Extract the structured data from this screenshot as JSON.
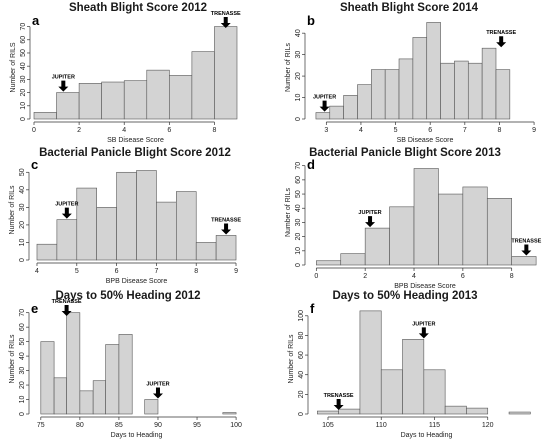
{
  "chart_data": [
    {
      "type": "bar",
      "panel": "a",
      "title": "Sheath Blight Score 2012",
      "xlabel": "SB Disease Score",
      "ylabel": "Number of RILS",
      "xlim": [
        0,
        9
      ],
      "ylim": [
        0,
        78
      ],
      "xticks": [
        0,
        2,
        4,
        6,
        8
      ],
      "yticks": [
        0,
        10,
        20,
        30,
        40,
        50,
        60,
        70
      ],
      "bins": [
        [
          0,
          1
        ],
        [
          1,
          2
        ],
        [
          2,
          3
        ],
        [
          3,
          4
        ],
        [
          4,
          5
        ],
        [
          5,
          6
        ],
        [
          6,
          7
        ],
        [
          7,
          8
        ],
        [
          8,
          9
        ]
      ],
      "values": [
        5,
        20,
        27,
        28,
        29,
        37,
        33,
        51,
        70
      ],
      "annotations": [
        {
          "label": "JUPITER",
          "x": 1.3,
          "y": 20
        },
        {
          "label": "TRENASSE",
          "x": 8.5,
          "y": 70
        }
      ]
    },
    {
      "type": "bar",
      "panel": "b",
      "title": "Sheath Blight Score 2014",
      "xlabel": "SB Disease Score",
      "ylabel": "Number of RILs",
      "xlim": [
        2.5,
        9.2
      ],
      "ylim": [
        0,
        48
      ],
      "xticks": [
        3,
        4,
        5,
        6,
        7,
        8,
        9
      ],
      "yticks": [
        0,
        10,
        20,
        30,
        40
      ],
      "bins": [
        [
          2.7,
          3.1
        ],
        [
          3.1,
          3.5
        ],
        [
          3.5,
          3.9
        ],
        [
          3.9,
          4.3
        ],
        [
          4.3,
          4.7
        ],
        [
          4.7,
          5.1
        ],
        [
          5.1,
          5.5
        ],
        [
          5.5,
          5.9
        ],
        [
          5.9,
          6.3
        ],
        [
          6.3,
          6.7
        ],
        [
          6.7,
          7.1
        ],
        [
          7.1,
          7.5
        ],
        [
          7.5,
          7.9
        ],
        [
          7.9,
          8.3
        ],
        [
          8.3,
          8.7
        ]
      ],
      "values": [
        3,
        6,
        11,
        16,
        23,
        23,
        28,
        38,
        45,
        26,
        27,
        26,
        33,
        23,
        0
      ],
      "annotations": [
        {
          "label": "JUPITER",
          "x": 2.95,
          "y": 3
        },
        {
          "label": "TRENASSE",
          "x": 8.05,
          "y": 33
        }
      ]
    },
    {
      "type": "bar",
      "panel": "c",
      "title": "Bacterial Panicle Blight Score 2012",
      "xlabel": "BPB Disease Score",
      "ylabel": "Number of RILs",
      "xlim": [
        3.9,
        9.1
      ],
      "ylim": [
        0,
        57
      ],
      "xticks": [
        4,
        5,
        6,
        7,
        8,
        9
      ],
      "yticks": [
        0,
        10,
        20,
        30,
        40,
        50
      ],
      "bins": [
        [
          4,
          4.5
        ],
        [
          4.5,
          5
        ],
        [
          5,
          5.5
        ],
        [
          5.5,
          6
        ],
        [
          6,
          6.5
        ],
        [
          6.5,
          7
        ],
        [
          7,
          7.5
        ],
        [
          7.5,
          8
        ],
        [
          8,
          8.5
        ],
        [
          8.5,
          9
        ]
      ],
      "values": [
        9,
        23,
        41,
        30,
        50,
        51,
        33,
        39,
        10,
        14
      ],
      "annotations": [
        {
          "label": "JUPITER",
          "x": 4.75,
          "y": 23
        },
        {
          "label": "TRENASSE",
          "x": 8.75,
          "y": 14
        }
      ]
    },
    {
      "type": "bar",
      "panel": "d",
      "title": "Bacterial Panicle Blight Score 2013",
      "xlabel": "BPB Disease Score",
      "ylabel": "Number of RILs",
      "xlim": [
        -0.3,
        9.2
      ],
      "ylim": [
        0,
        74
      ],
      "xticks": [
        0,
        2,
        4,
        6,
        8
      ],
      "yticks": [
        0,
        10,
        20,
        30,
        40,
        50,
        60,
        70
      ],
      "bins": [
        [
          0,
          1
        ],
        [
          1,
          2
        ],
        [
          2,
          3
        ],
        [
          3,
          4
        ],
        [
          4,
          5
        ],
        [
          5,
          6
        ],
        [
          6,
          7
        ],
        [
          7,
          8
        ],
        [
          8,
          9
        ]
      ],
      "values": [
        3,
        8,
        26,
        41,
        68,
        50,
        55,
        47,
        6
      ],
      "annotations": [
        {
          "label": "JUPITER",
          "x": 2.2,
          "y": 26
        },
        {
          "label": "TRENASSE",
          "x": 8.6,
          "y": 6
        }
      ]
    },
    {
      "type": "bar",
      "panel": "e",
      "title": "Days to 50% Heading 2012",
      "xlabel": "Days to Heading",
      "ylabel": "Number of RILs",
      "xlim": [
        74,
        100.5
      ],
      "ylim": [
        0,
        76
      ],
      "xticks": [
        75,
        80,
        85,
        90,
        95,
        100
      ],
      "yticks": [
        0,
        10,
        20,
        30,
        40,
        50,
        60,
        70
      ],
      "bins": [
        [
          75,
          76.7
        ],
        [
          76.7,
          78.3
        ],
        [
          78.3,
          80
        ],
        [
          80,
          81.7
        ],
        [
          81.7,
          83.3
        ],
        [
          83.3,
          85
        ],
        [
          85,
          86.7
        ],
        [
          86.7,
          88.3
        ],
        [
          88.3,
          90
        ],
        [
          90,
          91.7
        ],
        [
          91.7,
          93.3
        ],
        [
          93.3,
          95
        ],
        [
          95,
          96.7
        ],
        [
          96.7,
          98.3
        ],
        [
          98.3,
          100
        ]
      ],
      "values": [
        50,
        25,
        70,
        16,
        23,
        48,
        55,
        0,
        10,
        0,
        0,
        0,
        0,
        0,
        1
      ],
      "annotations": [
        {
          "label": "TRENASSE",
          "x": 78.3,
          "y": 70
        },
        {
          "label": "JUPITER",
          "x": 90,
          "y": 10
        }
      ]
    },
    {
      "type": "bar",
      "panel": "f",
      "title": "Days to 50% Heading 2013",
      "xlabel": "Days to Heading",
      "ylabel": "Number of RILs",
      "xlim": [
        103.5,
        125
      ],
      "ylim": [
        0,
        112
      ],
      "xticks": [
        105,
        110,
        115,
        120
      ],
      "yticks": [
        0,
        20,
        40,
        60,
        80,
        100
      ],
      "bins": [
        [
          104,
          106
        ],
        [
          106,
          108
        ],
        [
          108,
          110
        ],
        [
          110,
          112
        ],
        [
          112,
          114
        ],
        [
          114,
          116
        ],
        [
          116,
          118
        ],
        [
          118,
          120
        ],
        [
          120,
          122
        ],
        [
          122,
          124
        ]
      ],
      "values": [
        3,
        5,
        105,
        45,
        76,
        45,
        8,
        6,
        0,
        2
      ],
      "annotations": [
        {
          "label": "TRENASSE",
          "x": 106,
          "y": 3
        },
        {
          "label": "JUPITER",
          "x": 114,
          "y": 76
        }
      ]
    }
  ]
}
